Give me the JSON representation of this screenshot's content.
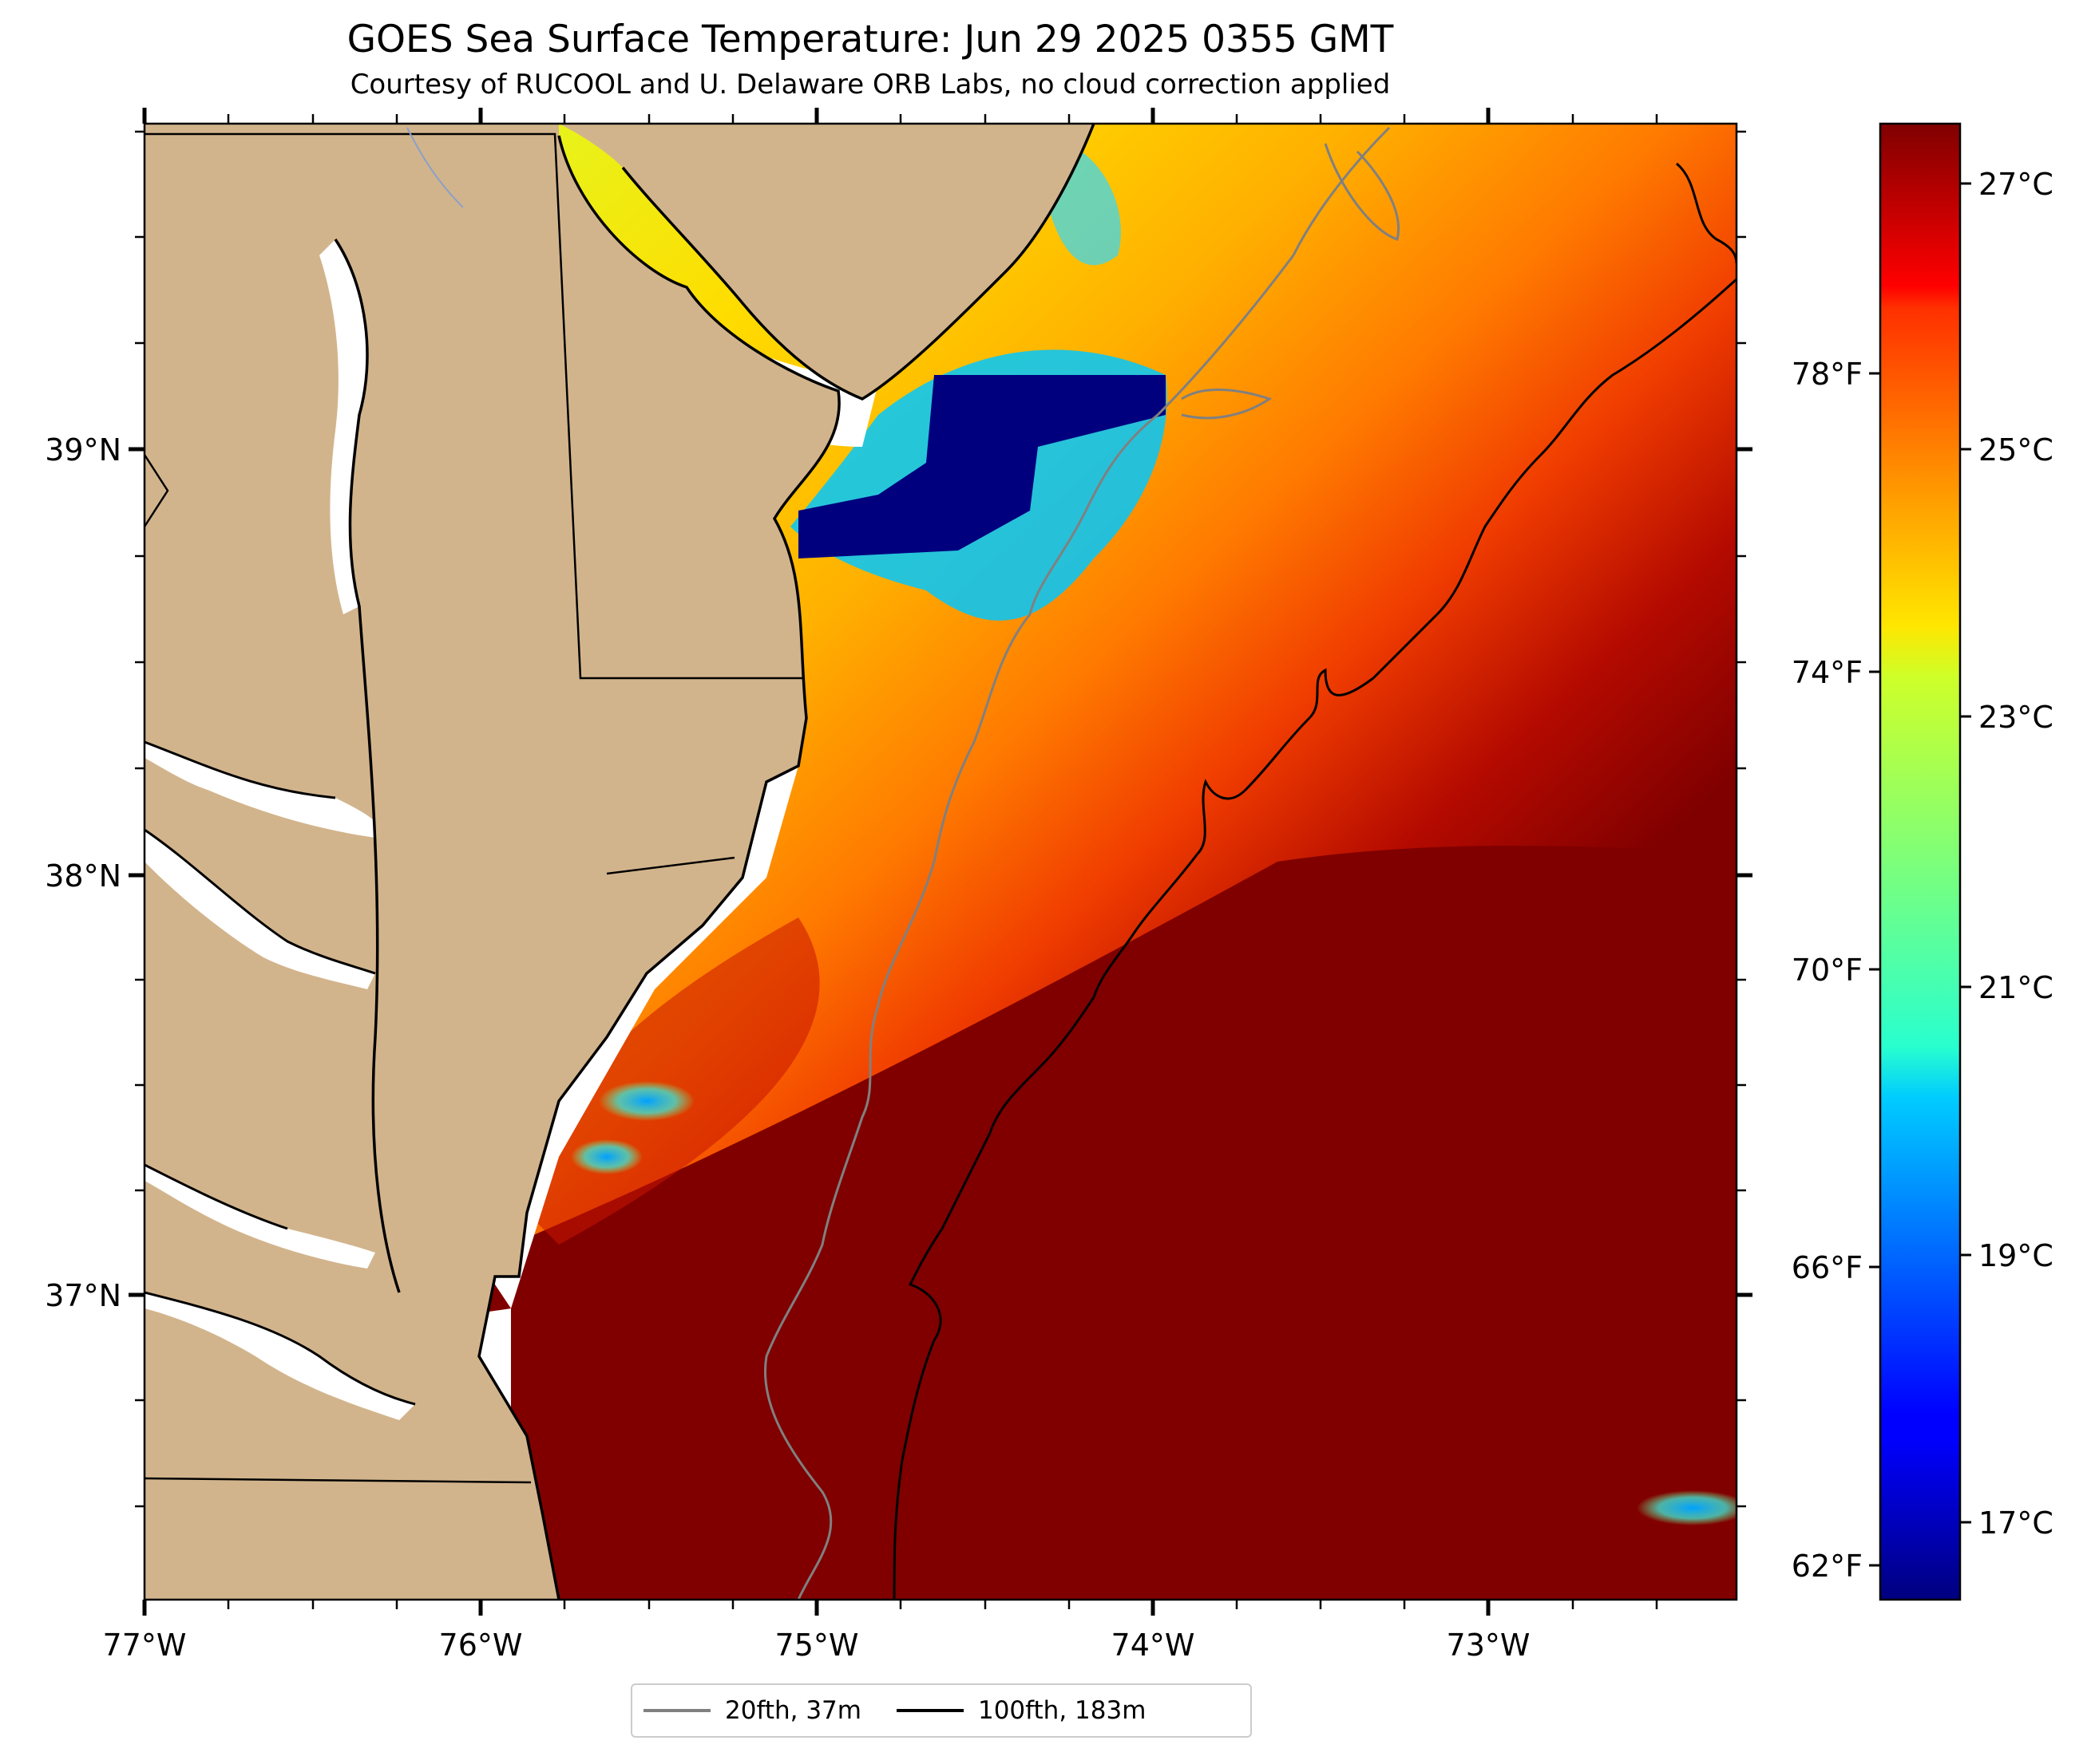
{
  "title": "GOES Sea Surface Temperature: Jun 29 2025 0355 GMT",
  "subtitle": "Courtesy of RUCOOL and U. Delaware ORB Labs, no cloud correction applied",
  "map": {
    "lon_range": [
      -77.0,
      -72.35
    ],
    "lat_range": [
      36.3,
      39.75
    ],
    "lon_ticks": [
      "77°W",
      "76°W",
      "75°W",
      "74°W",
      "73°W"
    ],
    "lat_ticks": [
      "39°N",
      "38°N",
      "37°N"
    ],
    "colors": {
      "land": "#d2b48c",
      "coast": "#000000",
      "no_data": "#ffffff",
      "warm_max": "#800000",
      "cold_min": "#00007f"
    }
  },
  "colorbar": {
    "colormap": "jet",
    "range_c": [
      16.0,
      27.5
    ],
    "celsius_ticks": [
      "27°C",
      "25°C",
      "23°C",
      "21°C",
      "19°C",
      "17°C"
    ],
    "fahrenheit_ticks": [
      "78°F",
      "74°F",
      "70°F",
      "66°F",
      "62°F"
    ]
  },
  "legend": [
    {
      "label": "20fth, 37m",
      "color": "#808080"
    },
    {
      "label": "100fth, 183m",
      "color": "#000000"
    }
  ]
}
